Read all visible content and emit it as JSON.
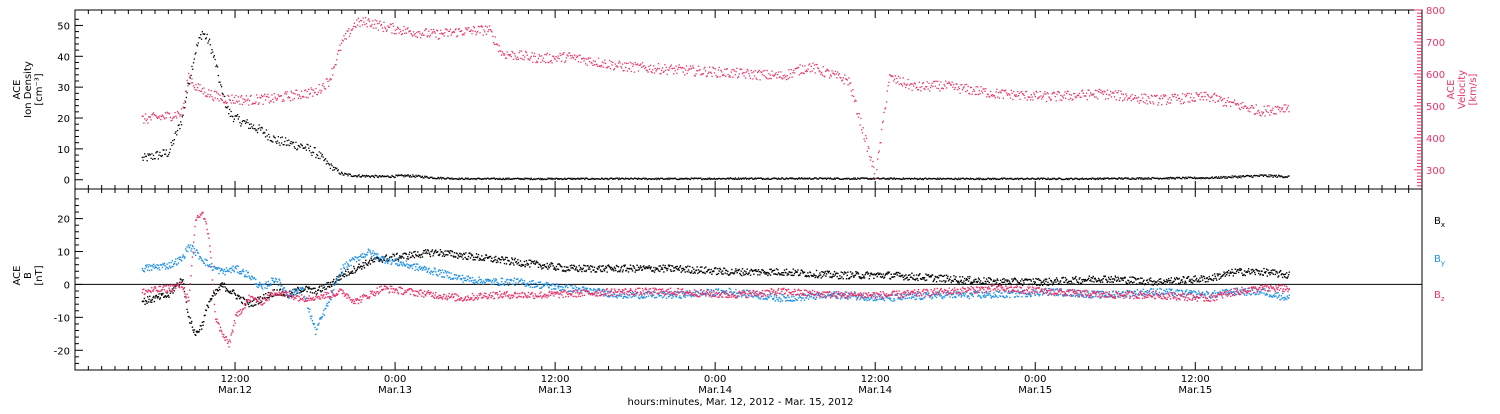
{
  "chart_data": [
    {
      "type": "scatter",
      "panel": "top",
      "left_axis": {
        "label_lines": [
          "ACE",
          "Ion Density",
          "[cm⁻³]"
        ],
        "ylim": [
          -3,
          55
        ],
        "ticks": [
          0,
          10,
          20,
          30,
          40,
          50
        ],
        "color": "#000000"
      },
      "right_axis": {
        "label_lines": [
          "ACE",
          "Velocity",
          "[km/s]"
        ],
        "ylim": [
          240,
          800
        ],
        "ticks": [
          300,
          400,
          500,
          600,
          700,
          800
        ],
        "color": "#e8336a"
      },
      "series": [
        {
          "axis": "left",
          "color": "#000000",
          "points": [
            [
              0.0,
              7
            ],
            [
              1.0,
              8
            ],
            [
              2.0,
              9
            ],
            [
              3.0,
              20
            ],
            [
              3.5,
              32
            ],
            [
              4.0,
              42
            ],
            [
              4.5,
              48
            ],
            [
              5.0,
              45
            ],
            [
              5.5,
              38
            ],
            [
              6.0,
              28
            ],
            [
              6.5,
              22
            ],
            [
              7.0,
              20
            ],
            [
              8.0,
              18
            ],
            [
              9.0,
              16
            ],
            [
              10.0,
              13
            ],
            [
              11.0,
              12
            ],
            [
              12.0,
              11
            ],
            [
              13.0,
              9
            ],
            [
              14.0,
              5
            ],
            [
              15.0,
              2
            ],
            [
              16.0,
              1.5
            ],
            [
              18.0,
              1.2
            ],
            [
              20.0,
              1.5
            ],
            [
              22.0,
              0.8
            ],
            [
              24.0,
              0.5
            ],
            [
              30.0,
              0.5
            ],
            [
              40.0,
              0.5
            ],
            [
              45.0,
              0.6
            ],
            [
              50.0,
              0.6
            ],
            [
              60.0,
              0.5
            ],
            [
              70.0,
              0.5
            ],
            [
              80.0,
              0.8
            ],
            [
              84.0,
              1.5
            ],
            [
              86.0,
              1.2
            ]
          ]
        },
        {
          "axis": "right",
          "color": "#e8336a",
          "points": [
            [
              0.0,
              460
            ],
            [
              2.0,
              470
            ],
            [
              3.0,
              480
            ],
            [
              3.5,
              600
            ],
            [
              4.0,
              560
            ],
            [
              5.0,
              540
            ],
            [
              6.0,
              525
            ],
            [
              8.0,
              520
            ],
            [
              10.0,
              525
            ],
            [
              12.0,
              540
            ],
            [
              13.0,
              545
            ],
            [
              14.0,
              580
            ],
            [
              15.0,
              700
            ],
            [
              16.0,
              760
            ],
            [
              17.0,
              765
            ],
            [
              18.0,
              750
            ],
            [
              20.0,
              735
            ],
            [
              22.0,
              725
            ],
            [
              24.0,
              735
            ],
            [
              26.0,
              740
            ],
            [
              27.0,
              665
            ],
            [
              30.0,
              650
            ],
            [
              32.0,
              655
            ],
            [
              36.0,
              625
            ],
            [
              40.0,
              615
            ],
            [
              44.0,
              605
            ],
            [
              48.0,
              595
            ],
            [
              50.0,
              625
            ],
            [
              52.0,
              595
            ],
            [
              53.0,
              580
            ],
            [
              55.0,
              280
            ],
            [
              56.0,
              590
            ],
            [
              58.0,
              560
            ],
            [
              60.0,
              565
            ],
            [
              64.0,
              540
            ],
            [
              68.0,
              530
            ],
            [
              72.0,
              540
            ],
            [
              76.0,
              520
            ],
            [
              80.0,
              530
            ],
            [
              82.0,
              505
            ],
            [
              84.0,
              485
            ],
            [
              86.0,
              500
            ]
          ]
        }
      ]
    },
    {
      "type": "line",
      "panel": "bottom",
      "left_axis": {
        "label_lines": [
          "ACE",
          "B",
          "[nT]"
        ],
        "ylim": [
          -26,
          29
        ],
        "ticks": [
          -20,
          -10,
          0,
          10,
          20
        ]
      },
      "legend": [
        "Bx",
        "By",
        "Bz"
      ],
      "series": [
        {
          "name": "Bx",
          "color": "#000000",
          "points": [
            [
              0,
              -5
            ],
            [
              2,
              -3
            ],
            [
              3,
              2
            ],
            [
              3.5,
              -10
            ],
            [
              4,
              -15
            ],
            [
              4.5,
              -12
            ],
            [
              5,
              -5
            ],
            [
              6,
              0
            ],
            [
              7,
              -3
            ],
            [
              8,
              -6
            ],
            [
              9,
              -4
            ],
            [
              10,
              -2
            ],
            [
              11,
              -3
            ],
            [
              12,
              -1
            ],
            [
              13,
              -2
            ],
            [
              14,
              0
            ],
            [
              15,
              3
            ],
            [
              16,
              5
            ],
            [
              17,
              7
            ],
            [
              18,
              8
            ],
            [
              20,
              9
            ],
            [
              22,
              10
            ],
            [
              24,
              9
            ],
            [
              26,
              8
            ],
            [
              28,
              7
            ],
            [
              30,
              6
            ],
            [
              32,
              5
            ],
            [
              36,
              5
            ],
            [
              40,
              5
            ],
            [
              44,
              4
            ],
            [
              48,
              4
            ],
            [
              52,
              3
            ],
            [
              56,
              3
            ],
            [
              60,
              2
            ],
            [
              64,
              1
            ],
            [
              68,
              1
            ],
            [
              72,
              2
            ],
            [
              76,
              1
            ],
            [
              80,
              2
            ],
            [
              82,
              4
            ],
            [
              84,
              4
            ],
            [
              86,
              3
            ]
          ]
        },
        {
          "name": "By",
          "color": "#1e90e6",
          "points": [
            [
              0,
              5
            ],
            [
              2,
              6
            ],
            [
              3,
              8
            ],
            [
              3.5,
              12
            ],
            [
              4,
              10
            ],
            [
              5,
              6
            ],
            [
              6,
              4
            ],
            [
              7,
              5
            ],
            [
              8,
              3
            ],
            [
              9,
              -1
            ],
            [
              10,
              2
            ],
            [
              11,
              -3
            ],
            [
              12,
              -1
            ],
            [
              13,
              -14
            ],
            [
              14,
              -5
            ],
            [
              15,
              5
            ],
            [
              16,
              8
            ],
            [
              17,
              10
            ],
            [
              18,
              8
            ],
            [
              20,
              6
            ],
            [
              22,
              4
            ],
            [
              24,
              2
            ],
            [
              26,
              1
            ],
            [
              28,
              1
            ],
            [
              30,
              0
            ],
            [
              32,
              -1
            ],
            [
              36,
              -3
            ],
            [
              40,
              -3
            ],
            [
              44,
              -2
            ],
            [
              48,
              -4
            ],
            [
              52,
              -3
            ],
            [
              56,
              -4
            ],
            [
              60,
              -3
            ],
            [
              64,
              -3
            ],
            [
              68,
              -2
            ],
            [
              72,
              -3
            ],
            [
              76,
              -2
            ],
            [
              80,
              -3
            ],
            [
              82,
              -2
            ],
            [
              84,
              -2
            ],
            [
              86,
              -4
            ]
          ]
        },
        {
          "name": "Bz",
          "color": "#e8336a",
          "points": [
            [
              0,
              -2
            ],
            [
              2,
              -1
            ],
            [
              3,
              0
            ],
            [
              3.5,
              -5
            ],
            [
              4,
              20
            ],
            [
              4.5,
              22
            ],
            [
              5,
              15
            ],
            [
              5.5,
              -10
            ],
            [
              6,
              -15
            ],
            [
              6.5,
              -18
            ],
            [
              7,
              -10
            ],
            [
              8,
              -4
            ],
            [
              9,
              -5
            ],
            [
              10,
              -2
            ],
            [
              12,
              -4
            ],
            [
              14,
              -3
            ],
            [
              15,
              -2
            ],
            [
              16,
              -5
            ],
            [
              17,
              -3
            ],
            [
              18,
              -1
            ],
            [
              20,
              -2
            ],
            [
              22,
              -3
            ],
            [
              24,
              -4
            ],
            [
              26,
              -3
            ],
            [
              30,
              -3
            ],
            [
              36,
              -2
            ],
            [
              40,
              -2
            ],
            [
              44,
              -3
            ],
            [
              48,
              -2
            ],
            [
              52,
              -3
            ],
            [
              56,
              -3
            ],
            [
              60,
              -2
            ],
            [
              64,
              -1
            ],
            [
              68,
              -2
            ],
            [
              72,
              -3
            ],
            [
              76,
              -3
            ],
            [
              80,
              -4
            ],
            [
              82,
              -2
            ],
            [
              84,
              -1
            ],
            [
              86,
              -1
            ]
          ]
        }
      ]
    }
  ],
  "time_axis": {
    "xlim": [
      -5,
      96
    ],
    "major": [
      {
        "t": 7,
        "time": "12:00",
        "date": "Mar.12"
      },
      {
        "t": 19,
        "time": "0:00",
        "date": "Mar.13"
      },
      {
        "t": 31,
        "time": "12:00",
        "date": "Mar.13"
      },
      {
        "t": 43,
        "time": "0:00",
        "date": "Mar.14"
      },
      {
        "t": 55,
        "time": "12:00",
        "date": "Mar.14"
      },
      {
        "t": 67,
        "time": "0:00",
        "date": "Mar.15"
      },
      {
        "t": 79,
        "time": "12:00",
        "date": "Mar.15"
      }
    ],
    "xlabel": "hours:minutes, Mar. 12, 2012 - Mar. 15, 2012"
  }
}
